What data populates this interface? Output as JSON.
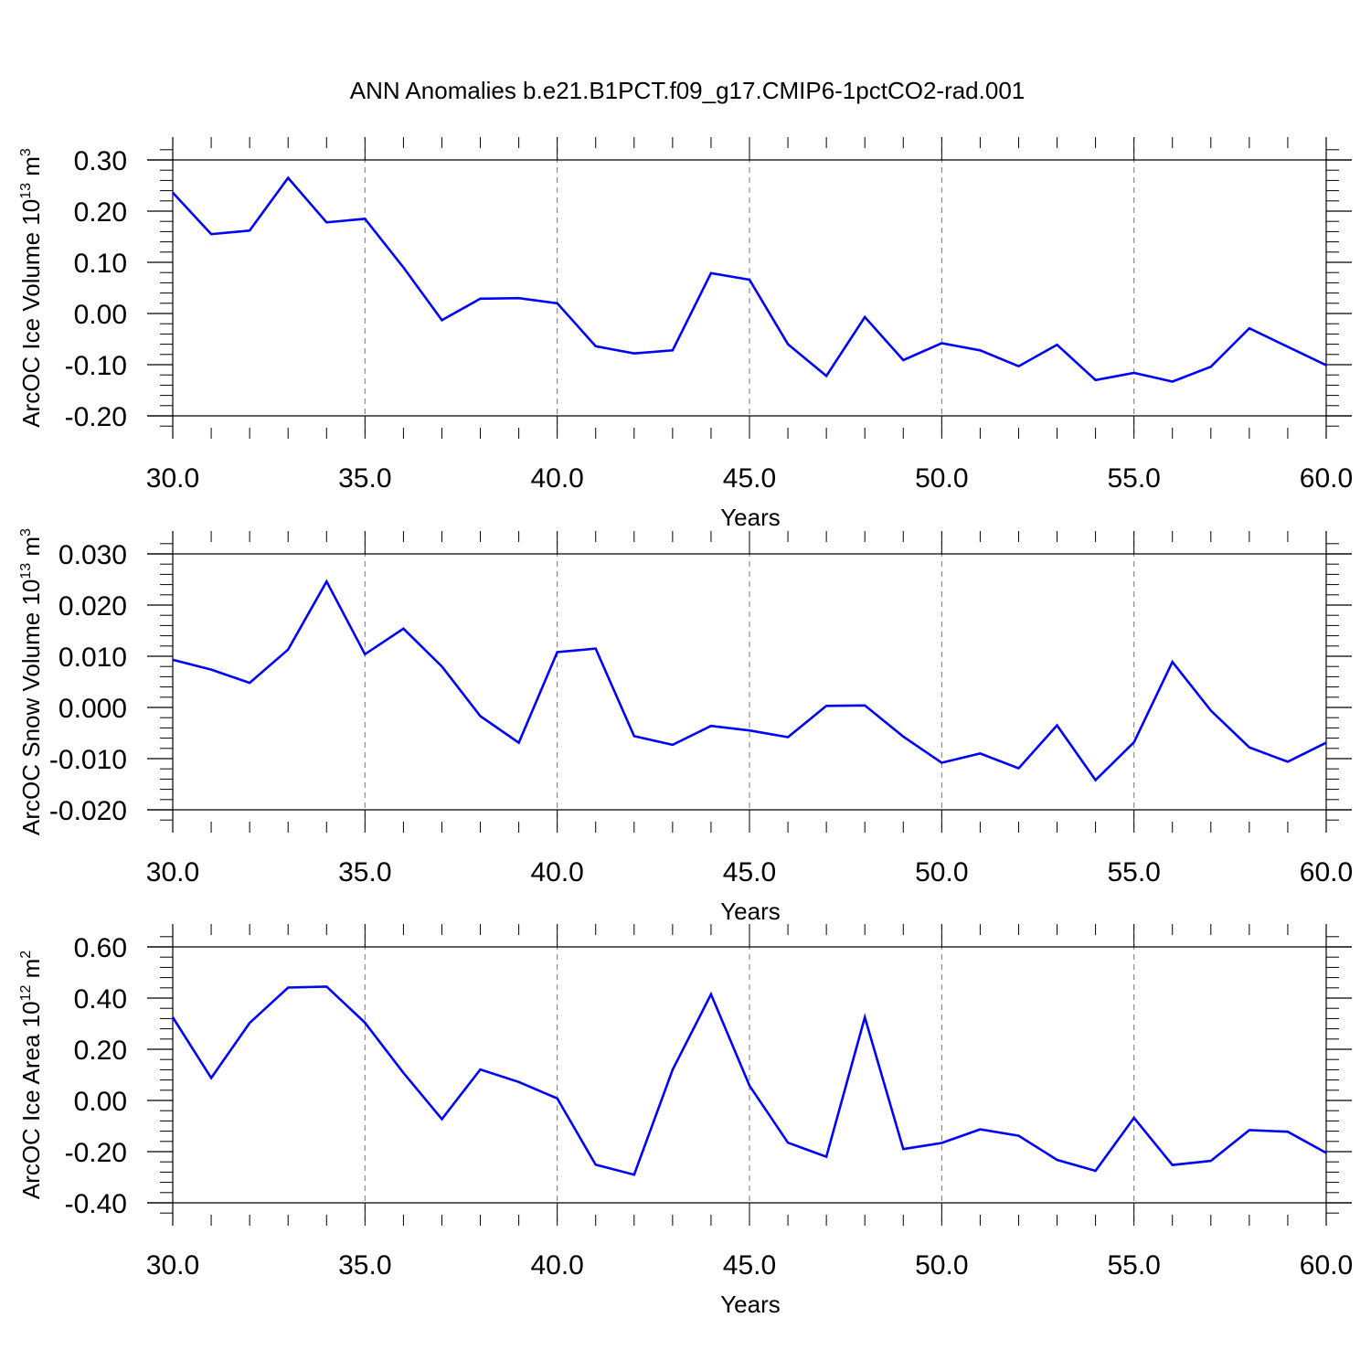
{
  "title": "ANN Anomalies b.e21.B1PCT.f09_g17.CMIP6-1pctCO2-rad.001",
  "colors": {
    "line": "#0000ff",
    "axis": "#000000",
    "grid": "#777777"
  },
  "chart_data": [
    {
      "type": "line",
      "xlabel": "Years",
      "ylabel_base": "ArcOC Ice Volume 10",
      "ylabel_sup": "13",
      "ylabel_unit": " m",
      "ylabel_unit_sup": "3",
      "xlim": [
        30,
        60
      ],
      "ylim": [
        -0.2,
        0.3
      ],
      "xticks": [
        "30.0",
        "35.0",
        "40.0",
        "45.0",
        "50.0",
        "55.0",
        "60.0"
      ],
      "yticks": [
        "-0.20",
        "-0.10",
        "0.00",
        "0.10",
        "0.20",
        "0.30"
      ],
      "ytick_values": [
        -0.2,
        -0.1,
        0.0,
        0.1,
        0.2,
        0.3
      ],
      "grid": "vertical dashed at major x ticks",
      "x": [
        30,
        31,
        32,
        33,
        34,
        35,
        36,
        37,
        38,
        39,
        40,
        41,
        42,
        43,
        44,
        45,
        46,
        47,
        48,
        49,
        50,
        51,
        52,
        53,
        54,
        55,
        56,
        57,
        58,
        59,
        60
      ],
      "values": [
        0.236,
        0.155,
        0.162,
        0.265,
        0.178,
        0.185,
        0.09,
        -0.013,
        0.029,
        0.03,
        0.02,
        -0.064,
        -0.078,
        -0.072,
        0.079,
        0.066,
        -0.06,
        -0.122,
        -0.007,
        -0.091,
        -0.058,
        -0.072,
        -0.103,
        -0.061,
        -0.13,
        -0.116,
        -0.133,
        -0.104,
        -0.029,
        -0.065,
        -0.101
      ]
    },
    {
      "type": "line",
      "xlabel": "Years",
      "ylabel_base": "ArcOC Snow Volume 10",
      "ylabel_sup": "13",
      "ylabel_unit": " m",
      "ylabel_unit_sup": "3",
      "xlim": [
        30,
        60
      ],
      "ylim": [
        -0.02,
        0.03
      ],
      "xticks": [
        "30.0",
        "35.0",
        "40.0",
        "45.0",
        "50.0",
        "55.0",
        "60.0"
      ],
      "yticks": [
        "-0.020",
        "-0.010",
        "0.000",
        "0.010",
        "0.020",
        "0.030"
      ],
      "ytick_values": [
        -0.02,
        -0.01,
        0.0,
        0.01,
        0.02,
        0.03
      ],
      "grid": "vertical dashed at major x ticks",
      "x": [
        30,
        31,
        32,
        33,
        34,
        35,
        36,
        37,
        38,
        39,
        40,
        41,
        42,
        43,
        44,
        45,
        46,
        47,
        48,
        49,
        50,
        51,
        52,
        53,
        54,
        55,
        56,
        57,
        58,
        59,
        60
      ],
      "values": [
        0.0093,
        0.0074,
        0.0048,
        0.0113,
        0.0246,
        0.0104,
        0.0154,
        0.008,
        -0.0017,
        -0.0069,
        0.0108,
        0.0115,
        -0.0056,
        -0.0073,
        -0.0036,
        -0.0045,
        -0.0058,
        0.0003,
        0.0004,
        -0.0057,
        -0.0108,
        -0.009,
        -0.0119,
        -0.0035,
        -0.0142,
        -0.0068,
        0.0089,
        -0.0006,
        -0.0078,
        -0.0106,
        -0.0069
      ]
    },
    {
      "type": "line",
      "xlabel": "Years",
      "ylabel_base": "ArcOC Ice Area 10",
      "ylabel_sup": "12",
      "ylabel_unit": " m",
      "ylabel_unit_sup": "2",
      "xlim": [
        30,
        60
      ],
      "ylim": [
        -0.4,
        0.6
      ],
      "xticks": [
        "30.0",
        "35.0",
        "40.0",
        "45.0",
        "50.0",
        "55.0",
        "60.0"
      ],
      "yticks": [
        "-0.40",
        "-0.20",
        "0.00",
        "0.20",
        "0.40",
        "0.60"
      ],
      "ytick_values": [
        -0.4,
        -0.2,
        0.0,
        0.2,
        0.4,
        0.6
      ],
      "grid": "vertical dashed at major x ticks",
      "x": [
        30,
        31,
        32,
        33,
        34,
        35,
        36,
        37,
        38,
        39,
        40,
        41,
        42,
        43,
        44,
        45,
        46,
        47,
        48,
        49,
        50,
        51,
        52,
        53,
        54,
        55,
        56,
        57,
        58,
        59,
        60
      ],
      "values": [
        0.325,
        0.088,
        0.303,
        0.441,
        0.445,
        0.304,
        0.108,
        -0.073,
        0.121,
        0.072,
        0.008,
        -0.251,
        -0.29,
        0.12,
        0.415,
        0.058,
        -0.165,
        -0.22,
        0.325,
        -0.19,
        -0.166,
        -0.113,
        -0.138,
        -0.232,
        -0.275,
        -0.068,
        -0.252,
        -0.236,
        -0.116,
        -0.122,
        -0.205
      ]
    }
  ]
}
